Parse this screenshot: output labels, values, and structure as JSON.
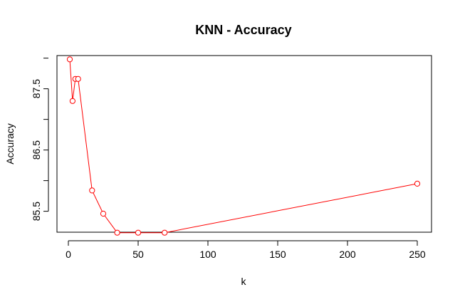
{
  "chart_data": {
    "type": "line",
    "title": "KNN - Accuracy",
    "xlabel": "k",
    "ylabel": "Accuracy",
    "xlim": [
      0,
      250
    ],
    "ylim": [
      85.1,
      88.1
    ],
    "x_ticks": [
      0,
      50,
      100,
      150,
      200,
      250
    ],
    "y_ticks": [
      85.5,
      86.5,
      87.5
    ],
    "grid": false,
    "legend": "none",
    "series": [
      {
        "color": "#ff0000",
        "marker": "open-circle",
        "x": [
          1,
          3,
          5,
          7,
          17,
          25,
          35,
          50,
          69,
          250
        ],
        "y": [
          87.98,
          87.3,
          87.66,
          87.66,
          85.84,
          85.46,
          85.15,
          85.15,
          85.15,
          85.95
        ]
      }
    ]
  }
}
